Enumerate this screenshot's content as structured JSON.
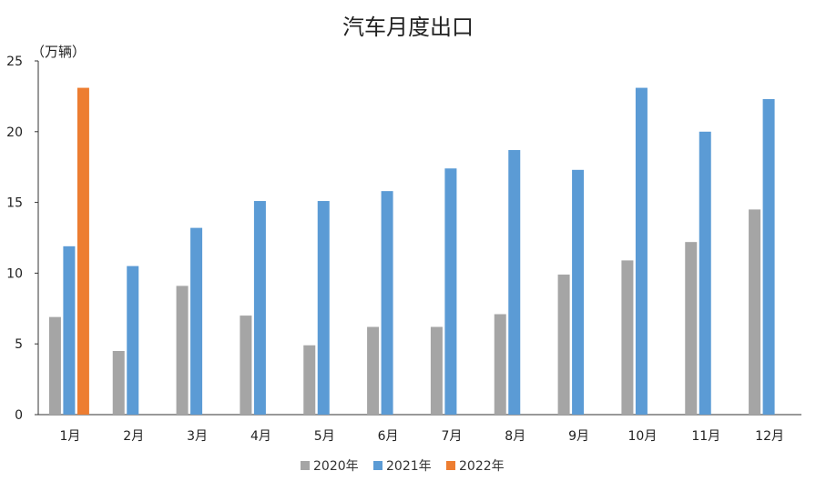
{
  "chart_data": {
    "type": "bar",
    "title": "汽车月度出口",
    "unit": "（万辆）",
    "categories": [
      "1月",
      "2月",
      "3月",
      "4月",
      "5月",
      "6月",
      "7月",
      "8月",
      "9月",
      "10月",
      "11月",
      "12月"
    ],
    "series": [
      {
        "name": "2020年",
        "color": "#a5a5a5",
        "values": [
          6.9,
          4.5,
          9.1,
          7.0,
          4.9,
          6.2,
          6.2,
          7.1,
          9.9,
          10.9,
          12.2,
          14.5
        ]
      },
      {
        "name": "2021年",
        "color": "#5b9bd5",
        "values": [
          11.9,
          10.5,
          13.2,
          15.1,
          15.1,
          15.8,
          17.4,
          18.7,
          17.3,
          23.1,
          20.0,
          22.3
        ]
      },
      {
        "name": "2022年",
        "color": "#ed7d31",
        "values": [
          23.1,
          null,
          null,
          null,
          null,
          null,
          null,
          null,
          null,
          null,
          null,
          null
        ]
      }
    ],
    "yticks": [
      "0",
      "5",
      "10",
      "15",
      "20",
      "25"
    ],
    "ylim": [
      0,
      25
    ],
    "legend_position": "bottom",
    "grid": false
  }
}
